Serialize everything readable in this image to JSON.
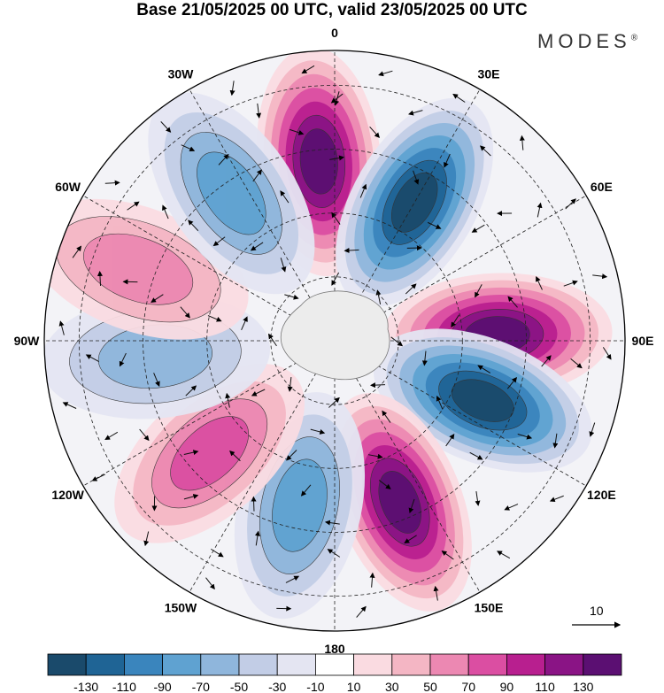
{
  "title": "Base 21/05/2025 00 UTC, valid 23/05/2025 00 UTC",
  "brand": "MODES",
  "brand_mark": "®",
  "longitude_labels": [
    "0",
    "30E",
    "60E",
    "90E",
    "120E",
    "150E",
    "180",
    "150W",
    "120W",
    "90W",
    "60W",
    "30W"
  ],
  "vector_reference": "10",
  "colorbar": {
    "labels": [
      "-130",
      "-110",
      "-90",
      "-70",
      "-50",
      "-30",
      "-10",
      "10",
      "30",
      "50",
      "70",
      "90",
      "110",
      "130"
    ],
    "colors": [
      "#1a4a6b",
      "#1f6495",
      "#3a85bd",
      "#5fa2d1",
      "#8fb6dc",
      "#c2cde6",
      "#e4e5f2",
      "#ffffff",
      "#fadbe1",
      "#f4b6c4",
      "#ec88b2",
      "#db4ea2",
      "#b81f8f",
      "#8a1485",
      "#5b0f72"
    ]
  },
  "anomaly_cells": [
    {
      "lon": 355,
      "rfrac": 0.62,
      "value": 135
    },
    {
      "lon": 30,
      "rfrac": 0.55,
      "value": -135
    },
    {
      "lon": 88,
      "rfrac": 0.56,
      "value": 135
    },
    {
      "lon": 112,
      "rfrac": 0.55,
      "value": -130
    },
    {
      "lon": 158,
      "rfrac": 0.6,
      "value": 130
    },
    {
      "lon": 192,
      "rfrac": 0.58,
      "value": -85
    },
    {
      "lon": 228,
      "rfrac": 0.58,
      "value": 70
    },
    {
      "lon": 265,
      "rfrac": 0.62,
      "value": -60
    },
    {
      "lon": 290,
      "rfrac": 0.72,
      "value": 60
    },
    {
      "lon": 325,
      "rfrac": 0.62,
      "value": -80
    }
  ]
}
